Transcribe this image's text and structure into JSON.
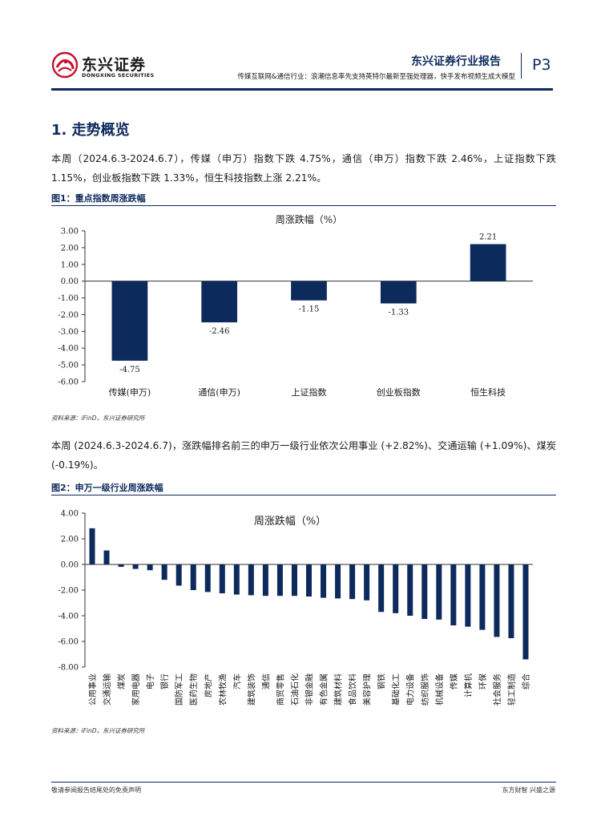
{
  "header": {
    "logo_cn": "东兴证券",
    "logo_en": "DONGXING SECURITIES",
    "report_type": "东兴证券行业报告",
    "page_number": "P3",
    "subtitle": "传媒互联网&通信行业：浪潮信息率先支持英特尔最新至强处理器，快手发布视频生成大模型",
    "brand_color": "#0d2a5c",
    "logo_color": "#c8102e"
  },
  "section": {
    "title": "1. 走势概览",
    "para1": "本周（2024.6.3-2024.6.7），传媒（申万）指数下跌 4.75%，通信（申万）指数下跌 2.46%，上证指数下跌 1.15%，创业板指数下跌 1.33%，恒生科技指数上涨 2.21%。",
    "para2": "本周 (2024.6.3-2024.6.7)，涨跌幅排名前三的申万一级行业依次公用事业 (+2.82%)、交通运输 (+1.09%)、煤炭 (-0.19%)。"
  },
  "figures": {
    "fig1_title": "图1：重点指数周涨跌幅",
    "fig1_source": "资料来源：iFinD，东兴证券研究所",
    "fig2_title": "图2：申万一级行业周涨跌幅",
    "fig2_source": "资料来源：iFinD，东兴证券研究所"
  },
  "chart_data": [
    {
      "type": "bar",
      "title": "周涨跌幅（%）",
      "categories": [
        "传媒(申万)",
        "通信(申万)",
        "上证指数",
        "创业板指数",
        "恒生科技"
      ],
      "values": [
        -4.75,
        -2.46,
        -1.15,
        -1.33,
        2.21
      ],
      "data_labels": [
        "-4.75",
        "-2.46",
        "-1.15",
        "-1.33",
        "2.21"
      ],
      "ylim": [
        -6,
        3
      ],
      "yticks": [
        "3.00",
        "2.00",
        "1.00",
        "0.00",
        "-1.00",
        "-2.00",
        "-3.00",
        "-4.00",
        "-5.00",
        "-6.00"
      ],
      "bar_color": "#0d2a5c",
      "grid": false,
      "legend": "none"
    },
    {
      "type": "bar",
      "title": "周涨跌幅（%）",
      "categories": [
        "公用事业",
        "交通运输",
        "煤炭",
        "家用电器",
        "电子",
        "银行",
        "国防军工",
        "医药生物",
        "房地产",
        "农林牧渔",
        "汽车",
        "建筑装饰",
        "通信",
        "商贸零售",
        "石油石化",
        "非银金融",
        "有色金属",
        "建筑材料",
        "食品饮料",
        "美容护理",
        "钢铁",
        "基础化工",
        "电力设备",
        "纺织服饰",
        "机械设备",
        "传媒",
        "计算机",
        "环保",
        "社会服务",
        "轻工制造",
        "综合"
      ],
      "values": [
        2.82,
        1.09,
        -0.19,
        -0.35,
        -0.45,
        -1.2,
        -1.65,
        -2.0,
        -2.15,
        -2.25,
        -2.35,
        -2.4,
        -2.45,
        -2.45,
        -2.45,
        -2.5,
        -2.6,
        -2.65,
        -2.7,
        -2.8,
        -3.7,
        -3.8,
        -4.0,
        -4.25,
        -4.3,
        -4.75,
        -4.85,
        -5.1,
        -5.65,
        -5.75,
        -7.4
      ],
      "ylim": [
        -8,
        4
      ],
      "yticks": [
        "4.00",
        "2.00",
        "0.00",
        "-2.00",
        "-4.00",
        "-6.00",
        "-8.00"
      ],
      "bar_color": "#0d2a5c",
      "grid": false,
      "legend": "none"
    }
  ],
  "footer": {
    "left": "敬请参阅报告结尾处的免责声明",
    "right": "东方财智  兴盛之源"
  }
}
